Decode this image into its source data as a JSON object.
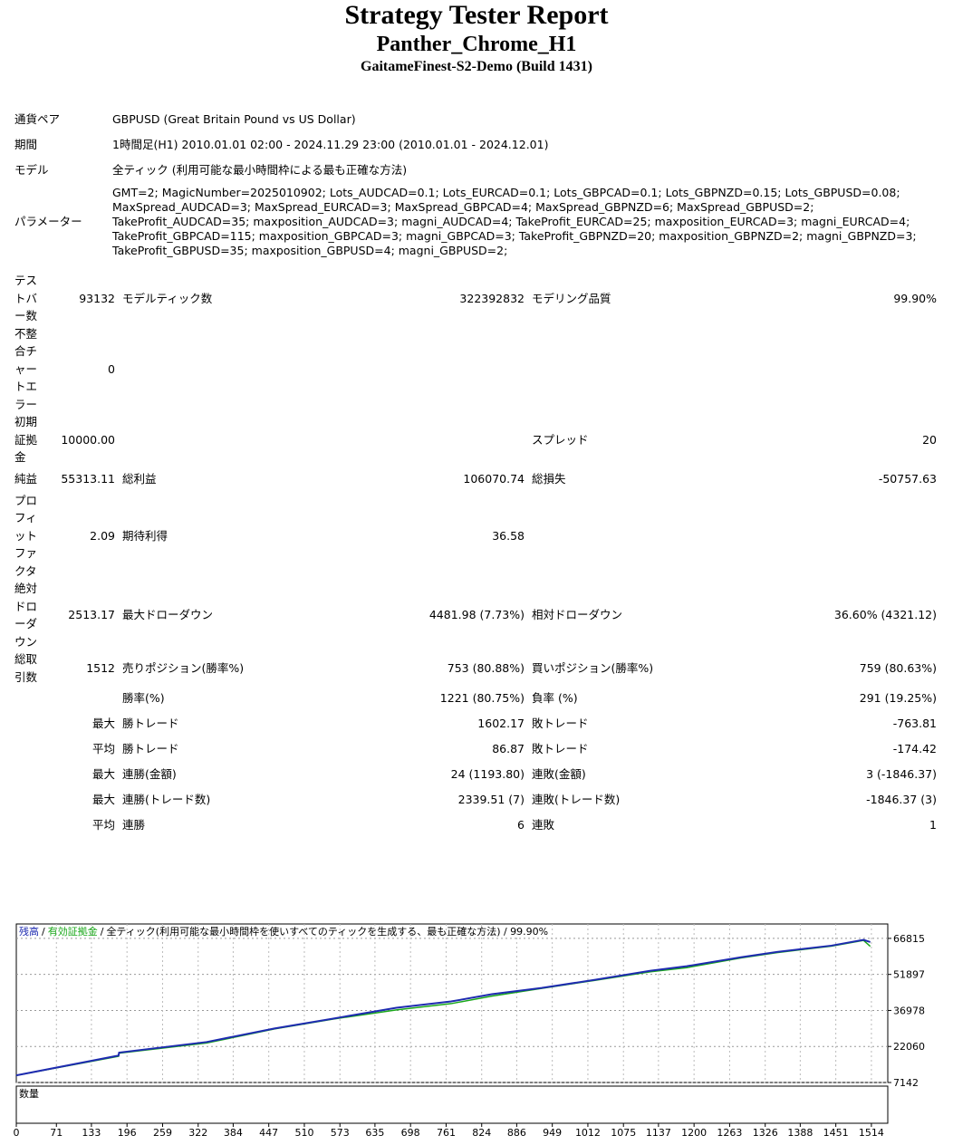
{
  "header": {
    "title": "Strategy Tester Report",
    "subtitle": "Panther_Chrome_H1",
    "server": "GaitameFinest-S2-Demo (Build 1431)"
  },
  "settings": {
    "rows": [
      [
        "通貨ペア",
        "GBPUSD (Great Britain Pound vs US Dollar)"
      ],
      [
        "期間",
        "1時間足(H1) 2010.01.01 02:00 - 2024.11.29 23:00 (2010.01.01 - 2024.12.01)"
      ],
      [
        "モデル",
        "全ティック (利用可能な最小時間枠による最も正確な方法)"
      ],
      [
        "パラメーター",
        "GMT=2; MagicNumber=2025010902; Lots_AUDCAD=0.1; Lots_EURCAD=0.1; Lots_GBPCAD=0.1; Lots_GBPNZD=0.15; Lots_GBPUSD=0.08; MaxSpread_AUDCAD=3; MaxSpread_EURCAD=3; MaxSpread_GBPCAD=4; MaxSpread_GBPNZD=6; MaxSpread_GBPUSD=2; TakeProfit_AUDCAD=35; maxposition_AUDCAD=3; magni_AUDCAD=4; TakeProfit_EURCAD=25; maxposition_EURCAD=3; magni_EURCAD=4; TakeProfit_GBPCAD=115; maxposition_GBPCAD=3; magni_GBPCAD=3; TakeProfit_GBPNZD=20; maxposition_GBPNZD=2; magni_GBPNZD=3; TakeProfit_GBPUSD=35; maxposition_GBPUSD=4; magni_GBPUSD=2;"
      ]
    ]
  },
  "stats": {
    "rows": [
      [
        "テストバー数",
        "93132",
        "モデルティック数",
        "322392832",
        "モデリング品質",
        "99.90%"
      ],
      [
        "不整合チャートエラー",
        "0",
        null,
        null,
        null,
        null
      ],
      [
        "初期証拠金",
        "10000.00",
        null,
        null,
        "スプレッド",
        "20"
      ],
      [
        "純益",
        "55313.11",
        "総利益",
        "106070.74",
        "総損失",
        "-50757.63"
      ],
      [
        "プロフィットファクタ",
        "2.09",
        "期待利得",
        "36.58",
        null,
        null
      ],
      [
        "絶対ドローダウン",
        "2513.17",
        "最大ドローダウン",
        "4481.98 (7.73%)",
        "相対ドローダウン",
        "36.60% (4321.12)"
      ],
      [
        "総取引数",
        "1512",
        "売りポジション(勝率%)",
        "753 (80.88%)",
        "買いポジション(勝率%)",
        "759 (80.63%)"
      ],
      [
        null,
        null,
        "勝率(%)",
        "1221 (80.75%)",
        "負率 (%)",
        "291 (19.25%)"
      ],
      [
        null,
        "最大",
        "勝トレード",
        "1602.17",
        "敗トレード",
        "-763.81"
      ],
      [
        null,
        "平均",
        "勝トレード",
        "86.87",
        "敗トレード",
        "-174.42"
      ],
      [
        null,
        "最大",
        "連勝(金額)",
        "24 (1193.80)",
        "連敗(金額)",
        "3 (-1846.37)"
      ],
      [
        null,
        "最大",
        "連勝(トレード数)",
        "2339.51 (7)",
        "連敗(トレード数)",
        "-1846.37 (3)"
      ],
      [
        null,
        "平均",
        "連勝",
        "6",
        "連敗",
        "1"
      ]
    ]
  },
  "chart_data": {
    "type": "line",
    "separator": "/",
    "model_label": "全ティック(利用可能な最小時間枠を使いすべてのティックを生成する、最も正確な方法) / 99.90%",
    "volume_label": "数量",
    "x": [
      0,
      181,
      182,
      337,
      457,
      561,
      673,
      770,
      842,
      930,
      1026,
      1123,
      1187,
      1283,
      1347,
      1443,
      1500,
      1512
    ],
    "series": [
      {
        "name": "残高",
        "color": "#1e2bb0",
        "values": [
          10100,
          18300,
          19500,
          23900,
          29500,
          33600,
          38100,
          40700,
          43700,
          46300,
          49700,
          53400,
          55300,
          59000,
          61200,
          63800,
          66200,
          65313
        ]
      },
      {
        "name": "有効証拠金",
        "color": "#1aa81a",
        "values": [
          10100,
          18000,
          19300,
          23500,
          29300,
          33400,
          37200,
          39800,
          42900,
          46100,
          49500,
          53000,
          54700,
          58700,
          60900,
          63600,
          66000,
          63500
        ]
      }
    ],
    "xlim": [
      0,
      1543
    ],
    "ylim": [
      7142,
      72782
    ],
    "xticks": [
      0,
      71,
      133,
      196,
      259,
      322,
      384,
      447,
      510,
      573,
      635,
      698,
      761,
      824,
      886,
      949,
      1012,
      1075,
      1137,
      1200,
      1263,
      1326,
      1388,
      1451,
      1514
    ],
    "yticks": [
      7142,
      22060,
      36978,
      51897,
      66815
    ],
    "grid": true
  }
}
